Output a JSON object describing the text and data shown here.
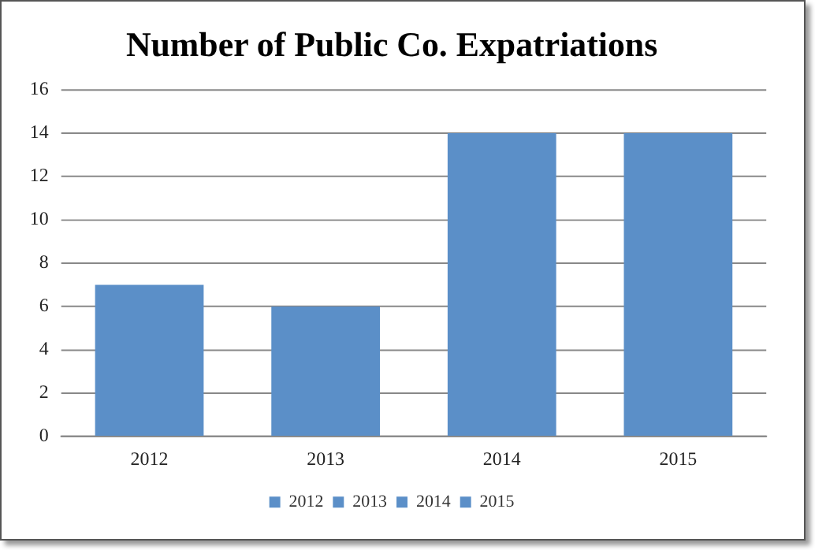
{
  "chart_data": {
    "type": "bar",
    "title": "Number of Public Co. Expatriations",
    "categories": [
      "2012",
      "2013",
      "2014",
      "2015"
    ],
    "series": [
      {
        "name": "2012",
        "color": "#5b8fc8",
        "values": [
          7,
          null,
          null,
          null
        ]
      },
      {
        "name": "2013",
        "color": "#5b8fc8",
        "values": [
          null,
          6,
          null,
          null
        ]
      },
      {
        "name": "2014",
        "color": "#5b8fc8",
        "values": [
          null,
          null,
          14,
          null
        ]
      },
      {
        "name": "2015",
        "color": "#5b8fc8",
        "values": [
          null,
          null,
          null,
          14
        ]
      }
    ],
    "ylim": [
      0,
      16
    ],
    "yticks": [
      0,
      2,
      4,
      6,
      8,
      10,
      12,
      14,
      16
    ],
    "grid": "y",
    "legend": "bottom"
  }
}
